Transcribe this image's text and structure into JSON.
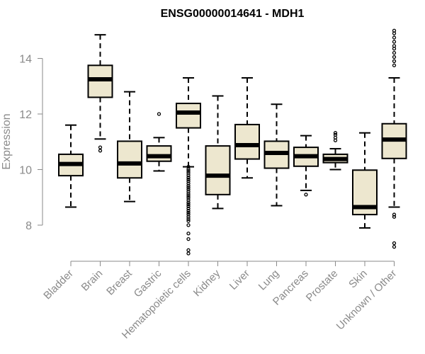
{
  "chart_data": {
    "type": "box",
    "title": "ENSG00000014641 - MDH1",
    "xlabel": "",
    "ylabel": "Expression",
    "ylim": [
      6.8,
      15.3
    ],
    "yticks": [
      8,
      10,
      12,
      14
    ],
    "grid": false,
    "legend": "none",
    "colors": {
      "box_fill": "#ede7cf",
      "box_stroke": "#000000",
      "axis": "#8a8a8a",
      "title": "#000000"
    },
    "categories": [
      "Bladder",
      "Brain",
      "Breast",
      "Gastric",
      "Hematopoietic cells",
      "Kidney",
      "Liver",
      "Lung",
      "Pancreas",
      "Prostate",
      "Skin",
      "Unknown / Other"
    ],
    "boxes": [
      {
        "category": "Bladder",
        "whisker_low": 8.65,
        "q1": 9.78,
        "median": 10.2,
        "q3": 10.55,
        "whisker_high": 11.6,
        "outliers": []
      },
      {
        "category": "Brain",
        "whisker_low": 11.1,
        "q1": 12.6,
        "median": 13.25,
        "q3": 13.75,
        "whisker_high": 14.85,
        "outliers": [
          10.8,
          10.68
        ]
      },
      {
        "category": "Breast",
        "whisker_low": 8.85,
        "q1": 9.7,
        "median": 10.22,
        "q3": 11.02,
        "whisker_high": 12.8,
        "outliers": []
      },
      {
        "category": "Gastric",
        "whisker_low": 9.95,
        "q1": 10.3,
        "median": 10.48,
        "q3": 10.85,
        "whisker_high": 11.15,
        "outliers": [
          12.0
        ]
      },
      {
        "category": "Hematopoietic cells",
        "whisker_low": 10.1,
        "q1": 11.5,
        "median": 12.05,
        "q3": 12.38,
        "whisker_high": 13.3,
        "outliers": [
          10.1,
          10.02,
          9.95,
          9.88,
          9.8,
          9.72,
          9.65,
          9.58,
          9.5,
          9.42,
          9.35,
          9.28,
          9.2,
          9.12,
          9.05,
          8.98,
          8.9,
          8.82,
          8.75,
          8.68,
          8.6,
          8.52,
          8.45,
          8.38,
          8.3,
          8.22,
          8.15,
          8.0,
          7.7,
          7.5,
          7.1,
          6.98
        ]
      },
      {
        "category": "Kidney",
        "whisker_low": 8.6,
        "q1": 9.1,
        "median": 9.78,
        "q3": 10.85,
        "whisker_high": 12.65,
        "outliers": []
      },
      {
        "category": "Liver",
        "whisker_low": 9.7,
        "q1": 10.38,
        "median": 10.88,
        "q3": 11.62,
        "whisker_high": 13.3,
        "outliers": []
      },
      {
        "category": "Lung",
        "whisker_low": 8.7,
        "q1": 10.05,
        "median": 10.6,
        "q3": 11.02,
        "whisker_high": 12.35,
        "outliers": []
      },
      {
        "category": "Pancreas",
        "whisker_low": 9.25,
        "q1": 10.12,
        "median": 10.48,
        "q3": 10.8,
        "whisker_high": 11.22,
        "outliers": [
          9.1
        ]
      },
      {
        "category": "Prostate",
        "whisker_low": 10.0,
        "q1": 10.25,
        "median": 10.38,
        "q3": 10.55,
        "whisker_high": 10.75,
        "outliers": [
          11.05,
          11.15,
          11.25,
          11.32
        ]
      },
      {
        "category": "Skin",
        "whisker_low": 7.9,
        "q1": 8.38,
        "median": 8.65,
        "q3": 9.98,
        "whisker_high": 11.32,
        "outliers": []
      },
      {
        "category": "Unknown / Other",
        "whisker_low": 8.65,
        "q1": 10.4,
        "median": 11.08,
        "q3": 11.65,
        "whisker_high": 13.3,
        "outliers": [
          8.3,
          8.38,
          7.35,
          7.22,
          13.75,
          13.9,
          14.05,
          14.2,
          14.35,
          14.45,
          14.6,
          14.75,
          14.9,
          15.0
        ]
      }
    ]
  }
}
